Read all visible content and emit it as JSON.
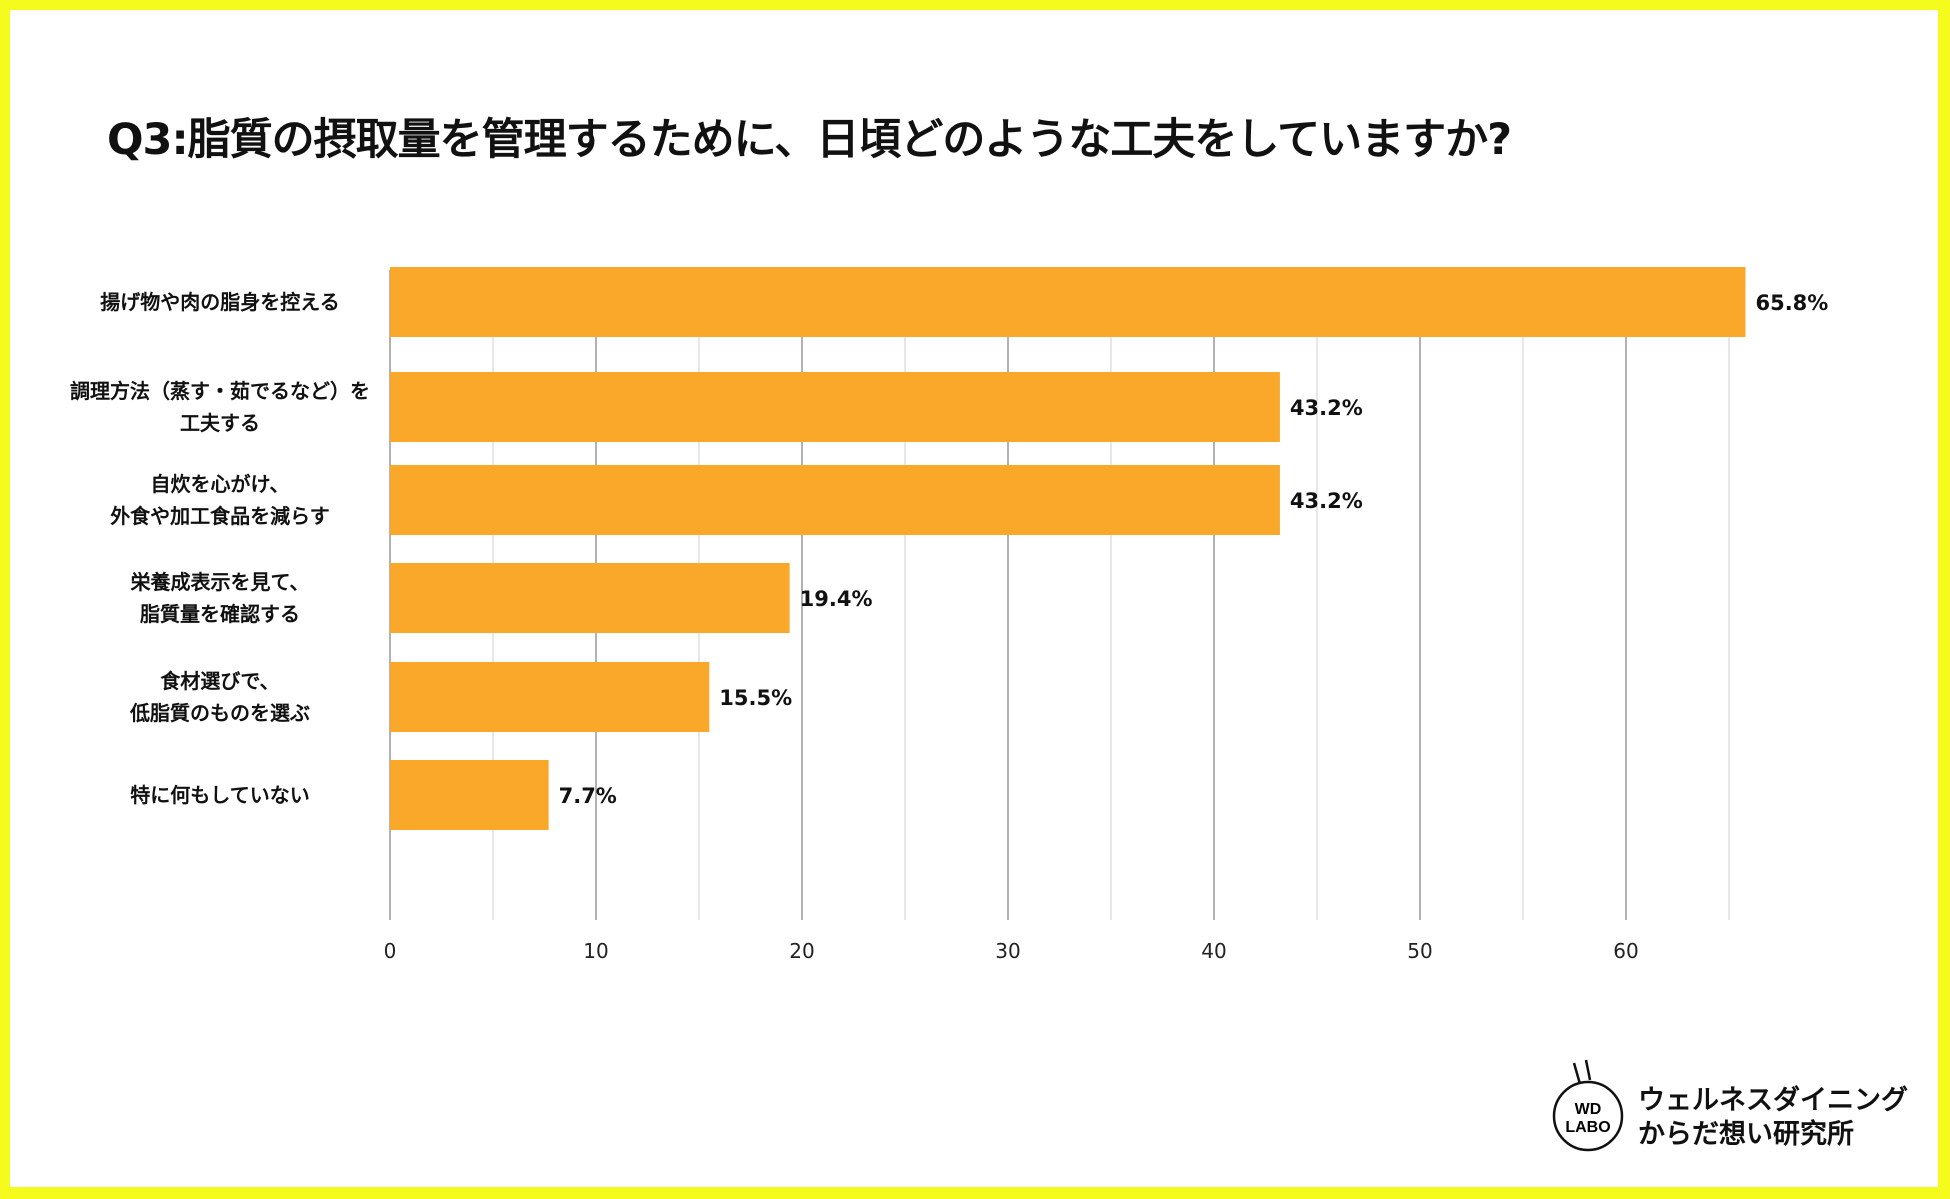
{
  "chart_data": {
    "type": "bar",
    "orientation": "horizontal",
    "title": "Q3:脂質の摂取量を管理するために、日頃どのような工夫をしていますか?",
    "categories": [
      "揚げ物や肉の脂身を控える",
      "調理方法（蒸す・茹でるなど）を\n工夫する",
      "自炊を心がけ、\n外食や加工食品を減らす",
      "栄養成表示を見て、\n脂質量を確認する",
      "食材選びで、\n低脂質のものを選ぶ",
      "特に何もしていない"
    ],
    "values": [
      65.8,
      43.2,
      43.2,
      19.4,
      15.5,
      7.7
    ],
    "data_labels": [
      "65.8%",
      "43.2%",
      "43.2%",
      "19.4%",
      "15.5%",
      "7.7%"
    ],
    "xlim": [
      0,
      66
    ],
    "xticks": [
      "0",
      "10",
      "20",
      "30",
      "40",
      "50",
      "60"
    ],
    "grid": true,
    "bar_color": "#f9a82a",
    "border_color": "#f6fb1e"
  },
  "logo": {
    "mark": "WD\nLABO",
    "text": "ウェルネスダイニング\nからだ想い研究所"
  }
}
